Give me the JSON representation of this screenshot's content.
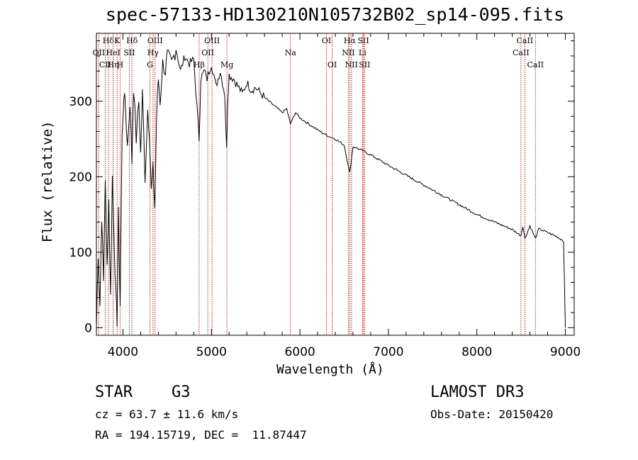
{
  "chart_data": {
    "type": "line",
    "title": "spec-57133-HD130210N105732B02_sp14-095.fits",
    "xlabel": "Wavelength (Å)",
    "ylabel": "Flux (relative)",
    "xlim": [
      3700,
      9100
    ],
    "ylim": [
      -10,
      390
    ],
    "xticks": [
      4000,
      5000,
      6000,
      7000,
      8000,
      9000
    ],
    "yticks": [
      0,
      100,
      200,
      300
    ],
    "series": [
      {
        "name": "spectrum",
        "x": [
          3700,
          3720,
          3740,
          3760,
          3780,
          3800,
          3820,
          3840,
          3860,
          3880,
          3900,
          3920,
          3933,
          3950,
          3968,
          3990,
          4010,
          4030,
          4050,
          4080,
          4101,
          4120,
          4150,
          4180,
          4200,
          4220,
          4250,
          4280,
          4300,
          4320,
          4340,
          4360,
          4380,
          4400,
          4420,
          4450,
          4480,
          4500,
          4550,
          4600,
          4650,
          4700,
          4750,
          4800,
          4861,
          4880,
          4920,
          4950,
          5000,
          5050,
          5100,
          5150,
          5172,
          5183,
          5200,
          5250,
          5300,
          5350,
          5400,
          5450,
          5500,
          5600,
          5700,
          5800,
          5850,
          5893,
          5950,
          6000,
          6100,
          6200,
          6300,
          6400,
          6500,
          6563,
          6600,
          6700,
          6800,
          6900,
          7000,
          7200,
          7400,
          7600,
          7800,
          8000,
          8200,
          8400,
          8498,
          8520,
          8542,
          8600,
          8662,
          8700,
          8800,
          8900,
          8980,
          9000
        ],
        "values": [
          0,
          100,
          30,
          150,
          60,
          200,
          80,
          170,
          40,
          200,
          120,
          40,
          10,
          150,
          30,
          250,
          310,
          290,
          240,
          300,
          220,
          320,
          250,
          300,
          230,
          310,
          200,
          290,
          260,
          180,
          210,
          160,
          280,
          330,
          300,
          350,
          340,
          360,
          350,
          370,
          340,
          360,
          350,
          355,
          250,
          330,
          340,
          330,
          350,
          320,
          340,
          310,
          235,
          300,
          335,
          330,
          320,
          310,
          325,
          315,
          318,
          305,
          295,
          285,
          290,
          270,
          285,
          278,
          270,
          262,
          255,
          250,
          242,
          205,
          240,
          235,
          229,
          222,
          215,
          202,
          189,
          176,
          163,
          150,
          140,
          130,
          122,
          135,
          118,
          135,
          118,
          131,
          126,
          121,
          115,
          0
        ]
      }
    ],
    "lines": [
      {
        "label": "Hδ",
        "x": 3835,
        "row": 1
      },
      {
        "label": "K",
        "x": 3934,
        "row": 1
      },
      {
        "label": "Hδ",
        "x": 4102,
        "row": 1
      },
      {
        "label": "OII",
        "x": 3727,
        "row": 2
      },
      {
        "label": "HeI",
        "x": 3889,
        "row": 2
      },
      {
        "label": "SII",
        "x": 4072,
        "row": 2
      },
      {
        "label": "OIII",
        "x": 4363,
        "row": 1
      },
      {
        "label": "Hγ",
        "x": 4340,
        "row": 2
      },
      {
        "label": "G",
        "x": 4305,
        "row": 3
      },
      {
        "label": "CII",
        "x": 3800,
        "row": 3
      },
      {
        "label": "Hη",
        "x": 3889,
        "row": 3
      },
      {
        "label": "H",
        "x": 3968,
        "row": 3
      },
      {
        "label": "OIII",
        "x": 5007,
        "row": 1
      },
      {
        "label": "OII",
        "x": 4959,
        "row": 2
      },
      {
        "label": "Hβ",
        "x": 4861,
        "row": 3
      },
      {
        "label": "Mg",
        "x": 5175,
        "row": 3
      },
      {
        "label": "Na",
        "x": 5893,
        "row": 2
      },
      {
        "label": "OI",
        "x": 6300,
        "row": 1
      },
      {
        "label": "OI",
        "x": 6364,
        "row": 3
      },
      {
        "label": "Hα",
        "x": 6563,
        "row": 1
      },
      {
        "label": "SII",
        "x": 6717,
        "row": 1
      },
      {
        "label": "NII",
        "x": 6548,
        "row": 2
      },
      {
        "label": "Li",
        "x": 6707,
        "row": 2
      },
      {
        "label": "NII",
        "x": 6583,
        "row": 3
      },
      {
        "label": "SII",
        "x": 6731,
        "row": 3
      },
      {
        "label": "CaII",
        "x": 8542,
        "row": 1
      },
      {
        "label": "CaII",
        "x": 8498,
        "row": 2
      },
      {
        "label": "CaII",
        "x": 8662,
        "row": 3
      }
    ]
  },
  "info": {
    "object_type": "STAR",
    "subclass": "G3",
    "survey": "LAMOST DR3",
    "velocity": "cz = 63.7 ± 11.6 km/s",
    "obs_date": "Obs-Date: 20150420",
    "coords": "RA = 194.15719, DEC =  11.87447"
  },
  "colors": {
    "line_marker": "#b22222",
    "spectrum": "#000000"
  }
}
